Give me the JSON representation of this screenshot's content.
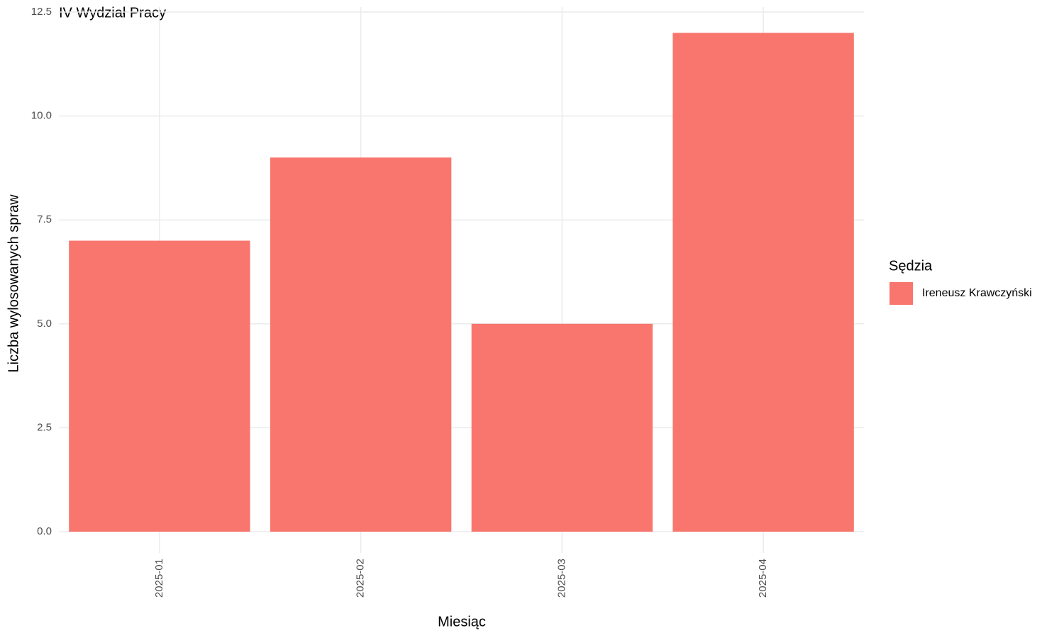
{
  "chart_data": {
    "type": "bar",
    "title": "IV Wydział Pracy",
    "x_label": "Miesiąc",
    "y_label": "Liczba wylosowanych spraw",
    "legend_title": "Sędzia",
    "legend_position": "right",
    "categories": [
      "2025-01",
      "2025-02",
      "2025-03",
      "2025-04"
    ],
    "series": [
      {
        "name": "Ireneusz Krawczyński",
        "color": "#F8766D",
        "values": [
          7,
          9,
          5,
          12
        ]
      }
    ],
    "ylim": [
      0,
      12.5
    ],
    "yticks": [
      {
        "value": 0,
        "label": "0.0"
      },
      2.5,
      {
        "value": 5,
        "label": "5.0"
      },
      7.5,
      {
        "value": 10,
        "label": "10.0"
      },
      12.5
    ],
    "grid": true
  }
}
